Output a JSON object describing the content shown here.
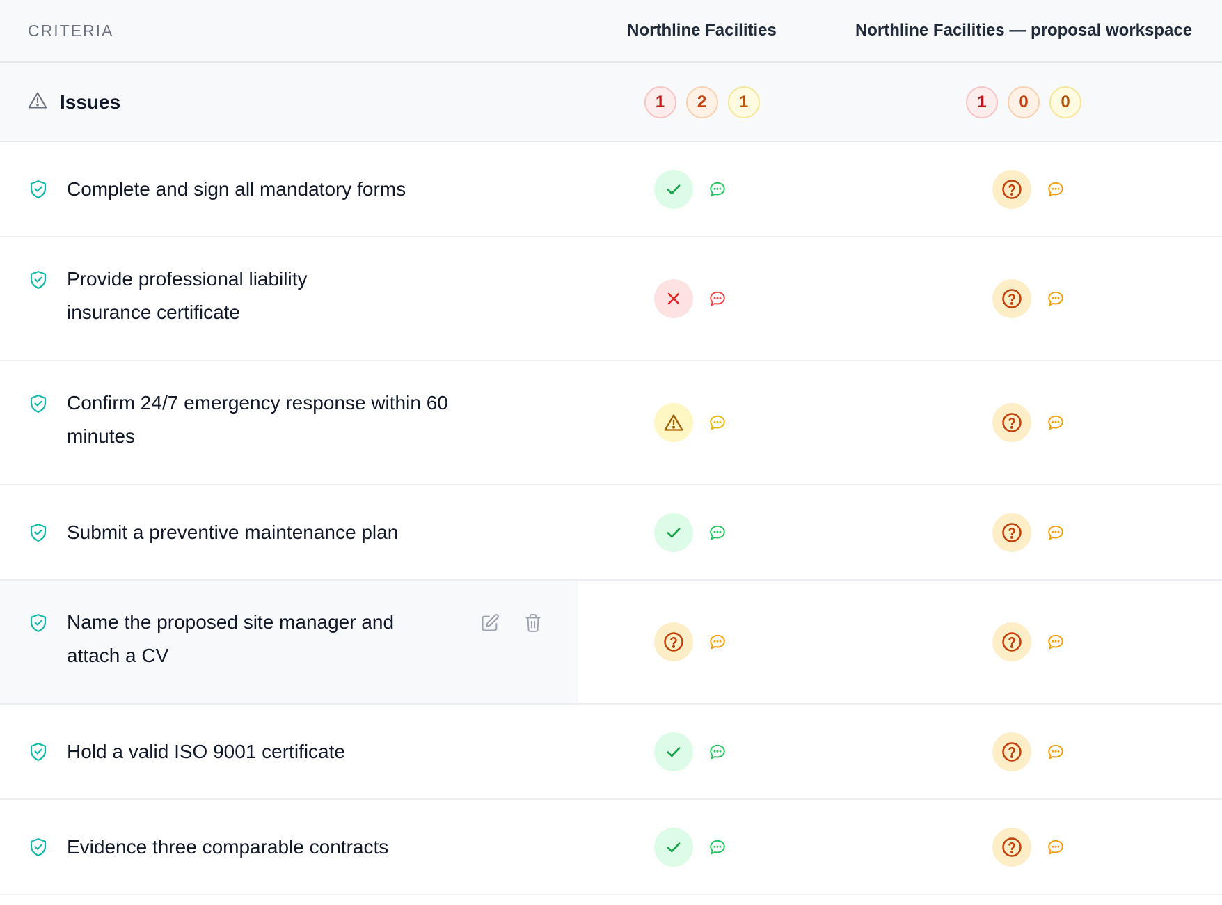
{
  "header": {
    "criteria_label": "CRITERIA",
    "col1": "Northline Facilities",
    "col2": "Northline Facilities — proposal workspace"
  },
  "issues": {
    "label": "Issues",
    "col1_counts": [
      "1",
      "2",
      "1"
    ],
    "col2_counts": [
      "1",
      "0",
      "0"
    ]
  },
  "rows": [
    {
      "label": "Complete and sign all mandatory forms",
      "col1_status": "pass",
      "col2_status": "unknown"
    },
    {
      "label": "Provide professional liability insurance certificate",
      "col1_status": "fail",
      "col2_status": "unknown"
    },
    {
      "label": "Confirm 24/7 emergency response within 60 minutes",
      "col1_status": "warning",
      "col2_status": "unknown"
    },
    {
      "label": "Submit a preventive maintenance plan",
      "col1_status": "pass",
      "col2_status": "unknown"
    },
    {
      "label": "Name the proposed site manager and attach a CV",
      "col1_status": "unknown",
      "col2_status": "unknown"
    },
    {
      "label": "Hold a valid ISO 9001 certificate",
      "col1_status": "pass",
      "col2_status": "unknown"
    },
    {
      "label": "Evidence three comparable contracts",
      "col1_status": "pass",
      "col2_status": "unknown"
    }
  ],
  "colors": {
    "pass": "#16a34a",
    "fail": "#dc2626",
    "warning": "#a16207",
    "unknown": "#c2410c",
    "comment_pass": "#22c55e",
    "comment_fail": "#ef4444",
    "comment_warn": "#eab308",
    "comment_unknown": "#f59e0b",
    "shield": "#14b8a6"
  },
  "icons": {
    "issues": "warning-triangle-icon",
    "criterion": "shield-check-icon",
    "comment": "comment-icon",
    "edit": "edit-icon",
    "delete": "trash-icon"
  }
}
